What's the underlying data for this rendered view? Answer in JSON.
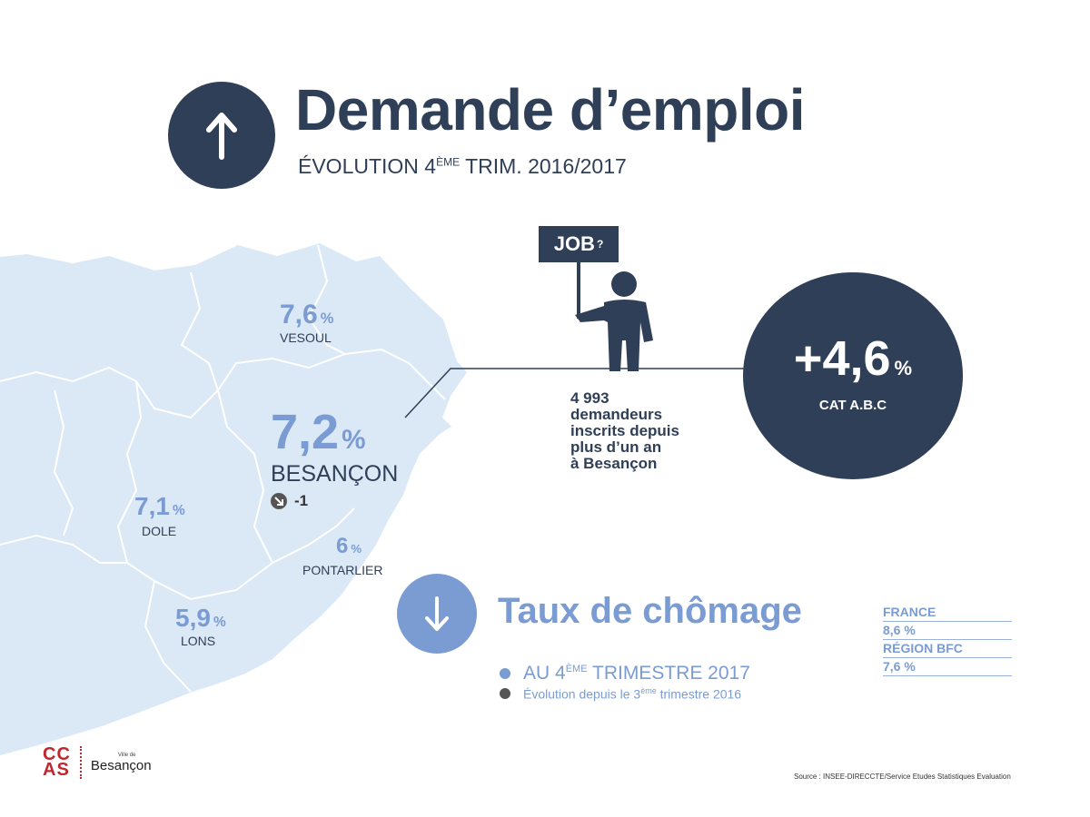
{
  "header": {
    "title": "Demande d’emploi",
    "subtitle_pre": "ÉVOLUTION 4",
    "subtitle_sup": "ÈME",
    "subtitle_post": " TRIM. 2016/2017"
  },
  "map": {
    "vesoul": {
      "value": "7,6",
      "unit": "%",
      "name": "VESOUL"
    },
    "besancon": {
      "value": "7,2",
      "unit": "%",
      "name": "BESANÇON",
      "evolution": "-1"
    },
    "dole": {
      "value": "7,1",
      "unit": "%",
      "name": "DOLE"
    },
    "pontarlier": {
      "value": "6",
      "unit": "%",
      "name": "PONTARLIER"
    },
    "lons": {
      "value": "5,9",
      "unit": "%",
      "name": "LONS"
    }
  },
  "job_sign": {
    "text": "JOB",
    "sup": "?"
  },
  "jobseekers": {
    "line1": "4 993",
    "line2": "demandeurs",
    "line3": "inscrits depuis",
    "line4": "plus d’un an",
    "line5": "à Besançon"
  },
  "big_stat": {
    "value": "+4,6",
    "unit": "%",
    "label": "CAT A.B.C"
  },
  "taux": {
    "title": "Taux de chômage",
    "legend1_pre": "AU 4",
    "legend1_sup": "ÈME",
    "legend1_post": " TRIMESTRE 2017",
    "legend2_pre": "Évolution depuis le 3",
    "legend2_sup": "ème",
    "legend2_post": " trimestre 2016"
  },
  "side_table": {
    "france_label": "FRANCE",
    "france_value": "8,6 %",
    "region_label": "RÉGION BFC",
    "region_value": "7,6 %"
  },
  "logo": {
    "cc_top": "CC",
    "cc_bottom": "AS",
    "small": "Ville de",
    "city": "Besançon"
  },
  "source": "Source : INSEE-DIRECCTE/Service Etudes Statistiques Evaluation",
  "colors": {
    "navy": "#2f3f57",
    "accent_blue": "#7a9cd3",
    "map_fill": "#dbe8f6",
    "logo_red": "#c0272d"
  },
  "icons": [
    "arrow-up-icon",
    "arrow-down-icon",
    "arrow-down-right-icon",
    "job-seeker-figure-icon"
  ]
}
